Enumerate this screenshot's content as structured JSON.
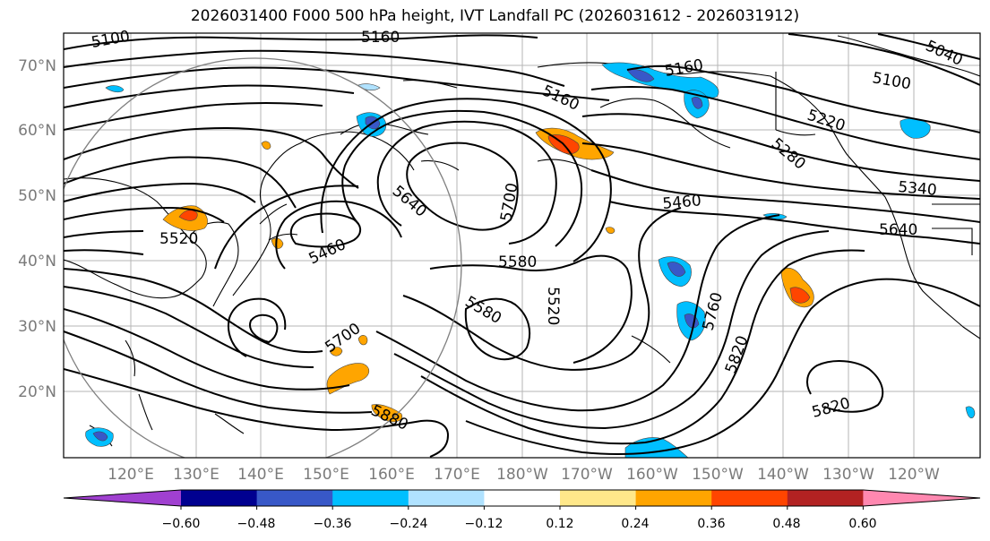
{
  "title": "2026031400 F000 500 hPa height, IVT Landfall PC (2026031612 - 2026031912)",
  "lat_labels": [
    "70°N",
    "60°N",
    "50°N",
    "40°N",
    "30°N",
    "20°N"
  ],
  "lon_labels": [
    "120°E",
    "130°E",
    "140°E",
    "150°E",
    "160°E",
    "170°E",
    "180°W",
    "170°W",
    "160°W",
    "150°W",
    "140°W",
    "130°W",
    "120°W"
  ],
  "contour_labels": [
    "5100",
    "5160",
    "5040",
    "5160",
    "5100",
    "5160",
    "5220",
    "5280",
    "5340",
    "5460",
    "5640",
    "5700",
    "5640",
    "5520",
    "5460",
    "5580",
    "5520",
    "5580",
    "5760",
    "5700",
    "5820",
    "5880",
    "5820"
  ],
  "colorbar": {
    "colors": [
      "#a040d0",
      "#000090",
      "#3858c8",
      "#00bfff",
      "#b0e2ff",
      "#ffffff",
      "#ffe88a",
      "#ffa500",
      "#ff4500",
      "#b22222",
      "#ff88b0"
    ],
    "ticks": [
      "−0.60",
      "−0.48",
      "−0.36",
      "−0.24",
      "−0.12",
      "0.12",
      "0.24",
      "0.36",
      "0.48",
      "0.60"
    ]
  }
}
